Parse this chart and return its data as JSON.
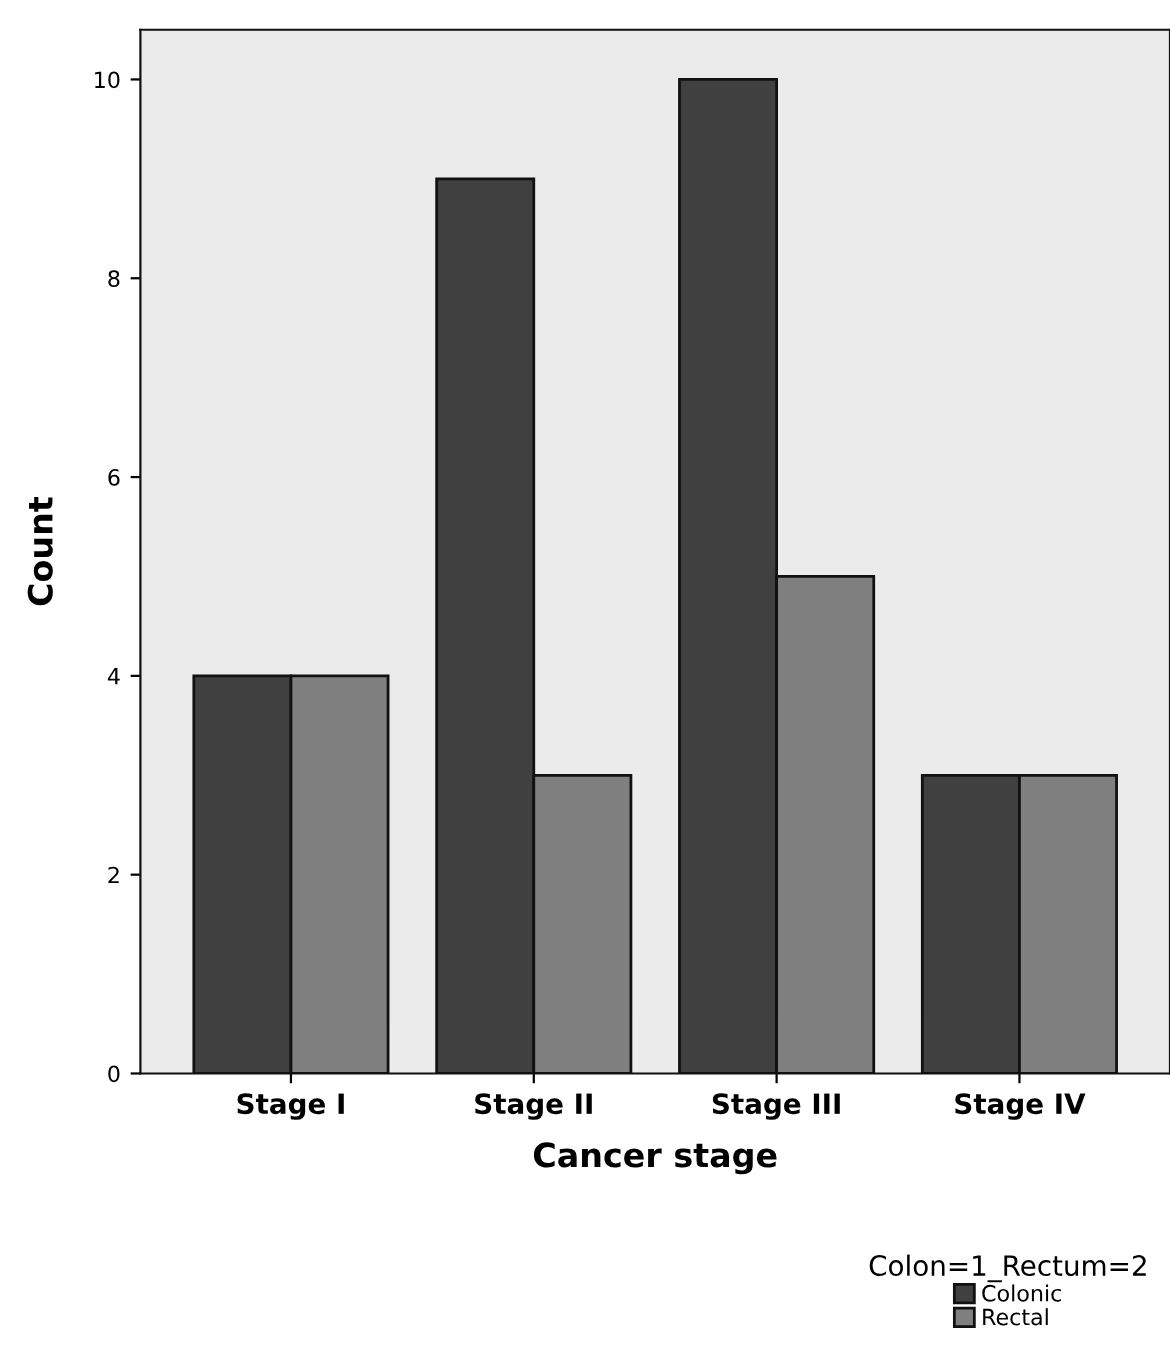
{
  "chart_data": {
    "type": "bar",
    "xlabel": "Cancer stage",
    "ylabel": "Count",
    "legend_title": "Colon=1_Rectum=2",
    "categories": [
      "Stage I",
      "Stage II",
      "Stage III",
      "Stage IV"
    ],
    "series": [
      {
        "name": "Colonic",
        "color": "#404040",
        "values": [
          4,
          9,
          10,
          3
        ]
      },
      {
        "name": "Rectal",
        "color": "#7f7f7f",
        "values": [
          4,
          3,
          5,
          3
        ]
      }
    ],
    "ylim": [
      0,
      10.5
    ],
    "yticks": [
      0,
      2,
      4,
      6,
      8,
      10
    ],
    "grid": false,
    "legend": "bottom right"
  }
}
